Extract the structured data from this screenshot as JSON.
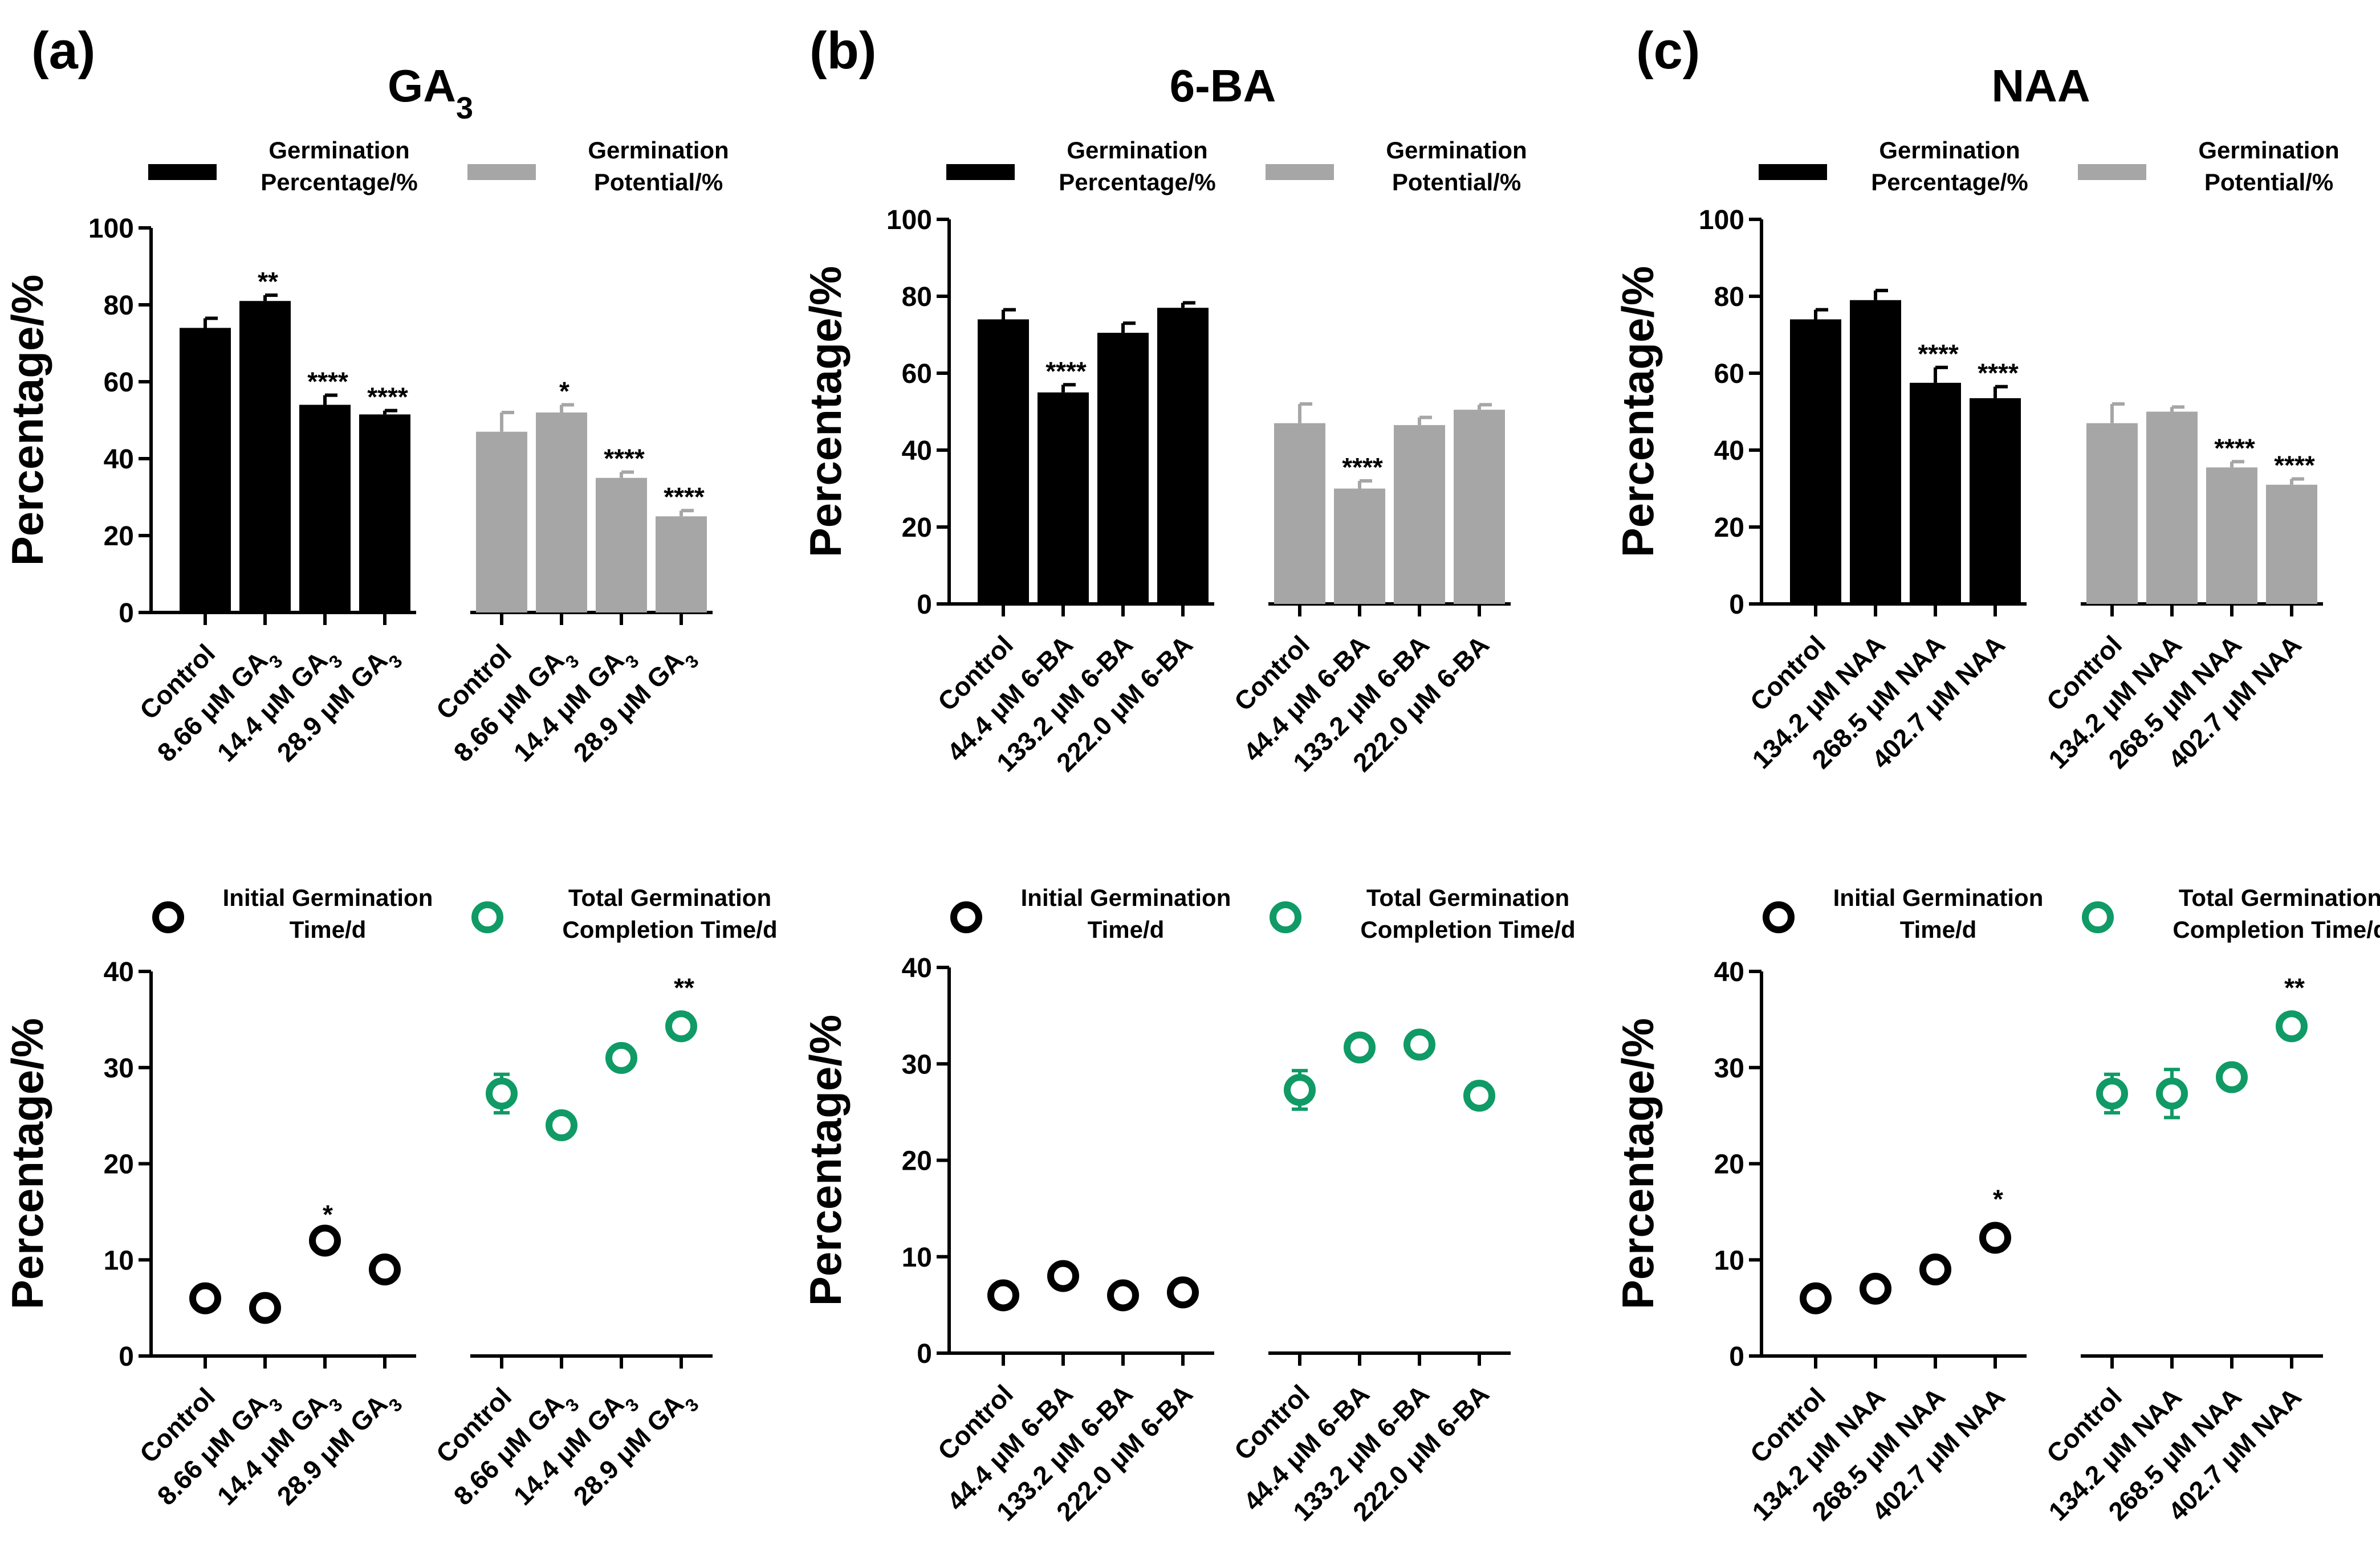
{
  "colors": {
    "black": "#000000",
    "gray": "#a6a6a6",
    "green": "#109a66"
  },
  "chart_data": [
    {
      "panel": "(a)",
      "type": "bar",
      "title": "GA3",
      "ylabel": "Percentage/%",
      "ylim": [
        0,
        100
      ],
      "yticks": [
        "0",
        "20",
        "40",
        "60",
        "80",
        "100"
      ],
      "legend": [
        "Germination Percentage/%",
        "Germination Potential/%"
      ],
      "categories": [
        "Control",
        "8.66 μM GA3",
        "14.4 μM GA3",
        "28.9 μM GA3"
      ],
      "series": [
        {
          "name": "Germination Percentage/%",
          "values": [
            74,
            81,
            54,
            51.5
          ],
          "errors": [
            2.5,
            1.5,
            2.5,
            1
          ],
          "sig": [
            "",
            "**",
            "****",
            "****"
          ]
        },
        {
          "name": "Germination Potential/%",
          "values": [
            47,
            52,
            35,
            25
          ],
          "errors": [
            5,
            2,
            1.5,
            1.5
          ],
          "sig": [
            "",
            "*",
            "****",
            "****"
          ]
        }
      ]
    },
    {
      "panel": "(b)",
      "type": "bar",
      "title": "6-BA",
      "ylabel": "Percentage/%",
      "ylim": [
        0,
        100
      ],
      "yticks": [
        "0",
        "20",
        "40",
        "60",
        "80",
        "100"
      ],
      "legend": [
        "Germination Percentage/%",
        "Germination Potential/%"
      ],
      "categories": [
        "Control",
        "44.4 μM 6-BA",
        "133.2 μM 6-BA",
        "222.0 μM 6-BA"
      ],
      "series": [
        {
          "name": "Germination Percentage/%",
          "values": [
            74,
            55,
            70.5,
            77
          ],
          "errors": [
            2.5,
            2,
            2.5,
            1.3
          ],
          "sig": [
            "",
            "****",
            "",
            ""
          ]
        },
        {
          "name": "Germination Potential/%",
          "values": [
            47,
            30,
            46.5,
            50.5
          ],
          "errors": [
            5,
            2,
            2,
            1.3
          ],
          "sig": [
            "",
            "****",
            "",
            ""
          ]
        }
      ]
    },
    {
      "panel": "(c)",
      "type": "bar",
      "title": "NAA",
      "ylabel": "Percentage/%",
      "ylim": [
        0,
        100
      ],
      "yticks": [
        "0",
        "20",
        "40",
        "60",
        "80",
        "100"
      ],
      "legend": [
        "Germination Percentage/%",
        "Germination Potential/%"
      ],
      "categories": [
        "Control",
        "134.2 μM NAA",
        "268.5 μM NAA",
        "402.7 μM NAA"
      ],
      "series": [
        {
          "name": "Germination Percentage/%",
          "values": [
            74,
            79,
            57.5,
            53.5
          ],
          "errors": [
            2.5,
            2.5,
            4,
            3
          ],
          "sig": [
            "",
            "",
            "****",
            "****"
          ]
        },
        {
          "name": "Germination Potential/%",
          "values": [
            47,
            50,
            35.5,
            31
          ],
          "errors": [
            5,
            1.2,
            1.5,
            1.5
          ],
          "sig": [
            "",
            "",
            "****",
            "****"
          ]
        }
      ]
    },
    {
      "panel": "(a)",
      "type": "scatter",
      "ylabel": "Percentage/%",
      "ylim": [
        0,
        40
      ],
      "yticks": [
        "0",
        "10",
        "20",
        "30",
        "40"
      ],
      "legend": [
        "Initial Germination Time/d",
        "Total Germination Completion Time/d"
      ],
      "categories": [
        "Control",
        "8.66 μM GA3",
        "14.4 μM GA3",
        "28.9 μM GA3"
      ],
      "series": [
        {
          "name": "Initial Germination Time/d",
          "values": [
            6,
            5,
            12,
            9
          ],
          "errors": [
            0,
            0,
            0,
            0
          ],
          "sig": [
            "",
            "",
            "*",
            ""
          ]
        },
        {
          "name": "Total Germination Completion Time/d",
          "values": [
            27.3,
            24,
            31,
            34.3
          ],
          "errors": [
            2,
            0,
            0,
            1.3
          ],
          "sig": [
            "",
            "",
            "",
            "**"
          ]
        }
      ]
    },
    {
      "panel": "(b)",
      "type": "scatter",
      "ylabel": "Percentage/%",
      "ylim": [
        0,
        40
      ],
      "yticks": [
        "0",
        "10",
        "20",
        "30",
        "40"
      ],
      "legend": [
        "Initial Germination Time/d",
        "Total Germination Completion Time/d"
      ],
      "categories": [
        "Control",
        "44.4 μM 6-BA",
        "133.2 μM 6-BA",
        "222.0 μM 6-BA"
      ],
      "series": [
        {
          "name": "Initial Germination Time/d",
          "values": [
            6,
            8,
            6,
            6.3
          ],
          "errors": [
            0,
            0,
            0,
            0
          ],
          "sig": [
            "",
            "",
            "",
            ""
          ]
        },
        {
          "name": "Total Germination Completion Time/d",
          "values": [
            27.3,
            31.7,
            32,
            26.7
          ],
          "errors": [
            2,
            0,
            0,
            1.3
          ],
          "sig": [
            "",
            "",
            "",
            ""
          ]
        }
      ]
    },
    {
      "panel": "(c)",
      "type": "scatter",
      "ylabel": "Percentage/%",
      "ylim": [
        0,
        40
      ],
      "yticks": [
        "0",
        "10",
        "20",
        "30",
        "40"
      ],
      "legend": [
        "Initial Germination Time/d",
        "Total Germination Completion Time/d"
      ],
      "categories": [
        "Control",
        "134.2 μM NAA",
        "268.5 μM NAA",
        "402.7 μM NAA"
      ],
      "series": [
        {
          "name": "Initial Germination Time/d",
          "values": [
            6,
            7,
            9,
            12.3
          ],
          "errors": [
            0,
            0,
            0,
            1.3
          ],
          "sig": [
            "",
            "",
            "",
            "*"
          ]
        },
        {
          "name": "Total Germination Completion Time/d",
          "values": [
            27.3,
            27.3,
            29,
            34.3
          ],
          "errors": [
            2,
            2.5,
            0,
            1.3
          ],
          "sig": [
            "",
            "",
            "",
            "**"
          ]
        }
      ]
    }
  ]
}
